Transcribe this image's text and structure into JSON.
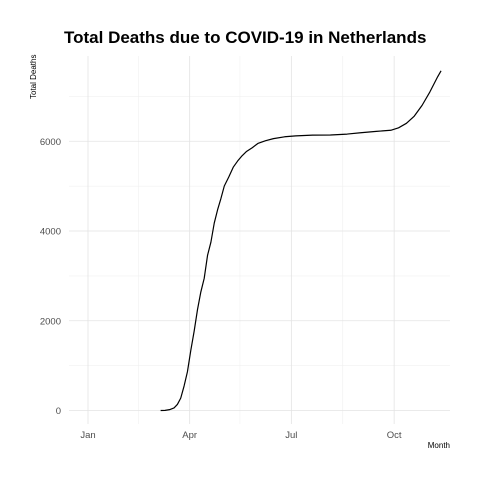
{
  "chart_data": {
    "type": "line",
    "title": "Total Deaths due to COVID-19 in Netherlands",
    "xlabel": "Month",
    "ylabel": "Total Deaths",
    "x_ticks": [
      "Jan",
      "Apr",
      "Jul",
      "Oct"
    ],
    "y_ticks": [
      "0",
      "2000",
      "4000",
      "6000"
    ],
    "ylim": [
      -300,
      7900
    ],
    "grid": true,
    "series": [
      {
        "points": [
          [
            "2020-01-22",
            0
          ],
          [
            "2020-03-06",
            1
          ],
          [
            "2020-03-10",
            4
          ],
          [
            "2020-03-14",
            20
          ],
          [
            "2020-03-18",
            58
          ],
          [
            "2020-03-21",
            136
          ],
          [
            "2020-03-24",
            276
          ],
          [
            "2020-03-27",
            546
          ],
          [
            "2020-03-30",
            864
          ],
          [
            "2020-04-02",
            1339
          ],
          [
            "2020-04-05",
            1766
          ],
          [
            "2020-04-08",
            2248
          ],
          [
            "2020-04-11",
            2643
          ],
          [
            "2020-04-14",
            2945
          ],
          [
            "2020-04-17",
            3459
          ],
          [
            "2020-04-20",
            3751
          ],
          [
            "2020-04-23",
            4177
          ],
          [
            "2020-04-26",
            4475
          ],
          [
            "2020-04-29",
            4727
          ],
          [
            "2020-05-02",
            5004
          ],
          [
            "2020-05-06",
            5204
          ],
          [
            "2020-05-10",
            5422
          ],
          [
            "2020-05-14",
            5562
          ],
          [
            "2020-05-18",
            5680
          ],
          [
            "2020-05-22",
            5775
          ],
          [
            "2020-05-27",
            5856
          ],
          [
            "2020-06-01",
            5951
          ],
          [
            "2020-06-08",
            6013
          ],
          [
            "2020-06-15",
            6059
          ],
          [
            "2020-06-25",
            6100
          ],
          [
            "2020-07-05",
            6120
          ],
          [
            "2020-07-20",
            6136
          ],
          [
            "2020-08-05",
            6140
          ],
          [
            "2020-08-20",
            6160
          ],
          [
            "2020-09-01",
            6190
          ],
          [
            "2020-09-15",
            6220
          ],
          [
            "2020-09-28",
            6245
          ],
          [
            "2020-10-05",
            6300
          ],
          [
            "2020-10-12",
            6400
          ],
          [
            "2020-10-19",
            6560
          ],
          [
            "2020-10-26",
            6800
          ],
          [
            "2020-11-02",
            7100
          ],
          [
            "2020-11-09",
            7440
          ],
          [
            "2020-11-12",
            7570
          ]
        ]
      }
    ]
  }
}
